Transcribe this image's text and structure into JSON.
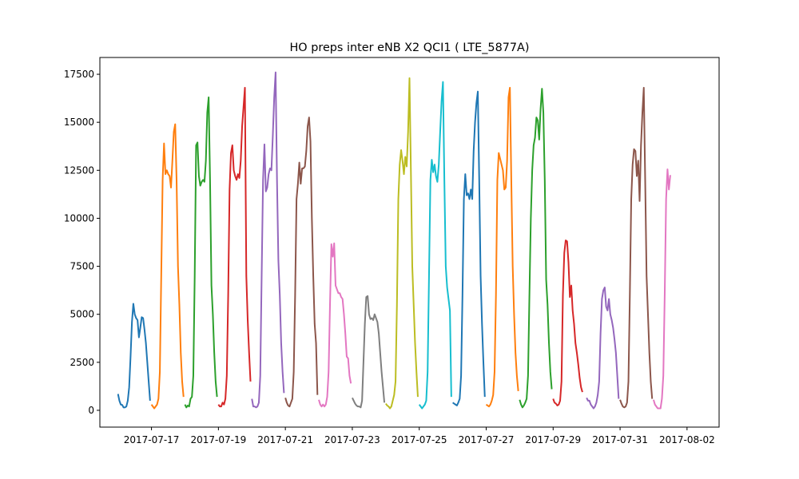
{
  "chart_data": {
    "type": "line",
    "title": "HO preps inter eNB X2 QCI1 ( LTE_5877A)",
    "xlabel": "",
    "ylabel": "",
    "xlim": [
      "2017-07-15T11:00",
      "2017-08-02T23:00"
    ],
    "ylim": [
      -875,
      18375
    ],
    "x_ticks": [
      "2017-07-17",
      "2017-07-19",
      "2017-07-21",
      "2017-07-23",
      "2017-07-25",
      "2017-07-27",
      "2017-07-29",
      "2017-07-31",
      "2017-08-02"
    ],
    "y_ticks": [
      0,
      2500,
      5000,
      7500,
      10000,
      12500,
      15000,
      17500
    ],
    "grid": false,
    "legend": "none",
    "series": [
      {
        "color": "#1f77b4",
        "start": "2017-07-16T00:00",
        "values": [
          850,
          500,
          300,
          280,
          150,
          150,
          200,
          500,
          1200,
          2800,
          4600,
          5550,
          5000,
          4800,
          4700,
          3800,
          4300,
          4850,
          4800,
          4200,
          3500,
          2500,
          1500,
          500
        ]
      },
      {
        "color": "#ff7f0e",
        "start": "2017-07-17T00:00",
        "values": [
          300,
          200,
          100,
          200,
          300,
          600,
          2000,
          7000,
          12000,
          13900,
          12300,
          12500,
          12300,
          12200,
          11600,
          13000,
          14500,
          14900,
          12000,
          7500,
          5500,
          3000,
          1500,
          700
        ]
      },
      {
        "color": "#2ca02c",
        "start": "2017-07-18T00:00",
        "values": [
          300,
          150,
          250,
          200,
          600,
          700,
          1800,
          7000,
          13800,
          13950,
          12200,
          11700,
          11900,
          12000,
          11900,
          13000,
          15500,
          16300,
          12000,
          6500,
          5000,
          3000,
          1500,
          700
        ]
      },
      {
        "color": "#d62728",
        "start": "2017-07-19T00:00",
        "values": [
          300,
          200,
          200,
          400,
          300,
          600,
          1800,
          6000,
          11500,
          13400,
          13800,
          12500,
          12200,
          12000,
          12300,
          12100,
          13000,
          14800,
          15800,
          16800,
          7000,
          4700,
          3000,
          1500
        ]
      },
      {
        "color": "#9467bd",
        "start": "2017-07-20T00:00",
        "values": [
          600,
          200,
          200,
          150,
          200,
          400,
          1800,
          7000,
          12000,
          13850,
          11400,
          11600,
          12300,
          12600,
          12500,
          14300,
          16300,
          17600,
          12000,
          7800,
          6000,
          3500,
          2000,
          900
        ]
      },
      {
        "color": "#8c564b",
        "start": "2017-07-21T00:00",
        "values": [
          650,
          400,
          250,
          200,
          400,
          600,
          2000,
          6000,
          11000,
          11800,
          12900,
          11800,
          12600,
          12600,
          12700,
          13500,
          14800,
          15250,
          14000,
          10000,
          7000,
          4500,
          3500,
          800
        ]
      },
      {
        "color": "#e377c2",
        "start": "2017-07-22T00:00",
        "values": [
          550,
          300,
          200,
          300,
          200,
          300,
          700,
          2000,
          5500,
          8650,
          8000,
          8700,
          6500,
          6300,
          6100,
          6100,
          5900,
          5800,
          5000,
          4000,
          2800,
          2700,
          1800,
          1400
        ]
      },
      {
        "color": "#7f7f7f",
        "start": "2017-07-23T00:00",
        "values": [
          650,
          500,
          350,
          250,
          200,
          200,
          150,
          500,
          2500,
          4500,
          5900,
          5950,
          5000,
          4750,
          4800,
          4700,
          5000,
          4800,
          4600,
          4000,
          3000,
          2000,
          1200,
          400
        ]
      },
      {
        "color": "#bcbd22",
        "start": "2017-07-24T00:00",
        "values": [
          350,
          250,
          200,
          100,
          200,
          500,
          800,
          1500,
          5500,
          11000,
          12800,
          13550,
          13000,
          12300,
          13200,
          12700,
          14500,
          17300,
          12500,
          7500,
          5500,
          3500,
          2000,
          700
        ]
      },
      {
        "color": "#17becf",
        "start": "2017-07-25T00:00",
        "values": [
          300,
          200,
          100,
          200,
          300,
          500,
          2000,
          7000,
          12000,
          13050,
          12400,
          12800,
          12200,
          11900,
          12800,
          14500,
          16100,
          17100,
          12000,
          7500,
          6400,
          5800,
          5200,
          700
        ]
      },
      {
        "color": "#1f77b4",
        "start": "2017-07-26T00:00",
        "values": [
          400,
          350,
          300,
          250,
          400,
          600,
          1800,
          6000,
          11000,
          12300,
          11200,
          11300,
          11000,
          11500,
          11000,
          13500,
          15000,
          16000,
          16600,
          12000,
          7000,
          4500,
          2500,
          700
        ]
      },
      {
        "color": "#ff7f0e",
        "start": "2017-07-27T00:00",
        "values": [
          300,
          250,
          200,
          300,
          500,
          800,
          2000,
          6000,
          12000,
          13400,
          13100,
          12800,
          12500,
          11500,
          11600,
          13000,
          16300,
          16800,
          12000,
          7500,
          5000,
          3000,
          1800,
          1000
        ]
      },
      {
        "color": "#2ca02c",
        "start": "2017-07-28T00:00",
        "values": [
          550,
          300,
          150,
          250,
          400,
          600,
          1800,
          6000,
          10000,
          12500,
          13800,
          14200,
          15250,
          15100,
          14100,
          15700,
          16750,
          15500,
          12000,
          6800,
          5500,
          3500,
          2000,
          1100
        ]
      },
      {
        "color": "#d62728",
        "start": "2017-07-29T00:00",
        "values": [
          600,
          400,
          350,
          250,
          300,
          500,
          1500,
          6000,
          8200,
          8850,
          8800,
          7700,
          5900,
          6500,
          5200,
          4500,
          3500,
          3000,
          2400,
          1700,
          1200,
          950
        ]
      },
      {
        "color": "#9467bd",
        "start": "2017-07-30T00:00",
        "values": [
          650,
          500,
          500,
          300,
          200,
          100,
          200,
          400,
          800,
          1500,
          4000,
          5800,
          6250,
          6400,
          5400,
          5200,
          5800,
          5000,
          4700,
          4300,
          3700,
          3000,
          1800,
          600
        ]
      },
      {
        "color": "#8c564b",
        "start": "2017-07-31T00:00",
        "values": [
          550,
          350,
          200,
          150,
          200,
          400,
          1500,
          6000,
          11000,
          12800,
          13600,
          13500,
          12200,
          13000,
          10900,
          13800,
          15500,
          16800,
          12000,
          7000,
          5000,
          3000,
          1500,
          600
        ]
      },
      {
        "color": "#e377c2",
        "start": "2017-08-01T00:00",
        "values": [
          550,
          300,
          200,
          100,
          100,
          100,
          600,
          1800,
          6000,
          11000,
          12550,
          11500,
          12250
        ]
      }
    ]
  }
}
